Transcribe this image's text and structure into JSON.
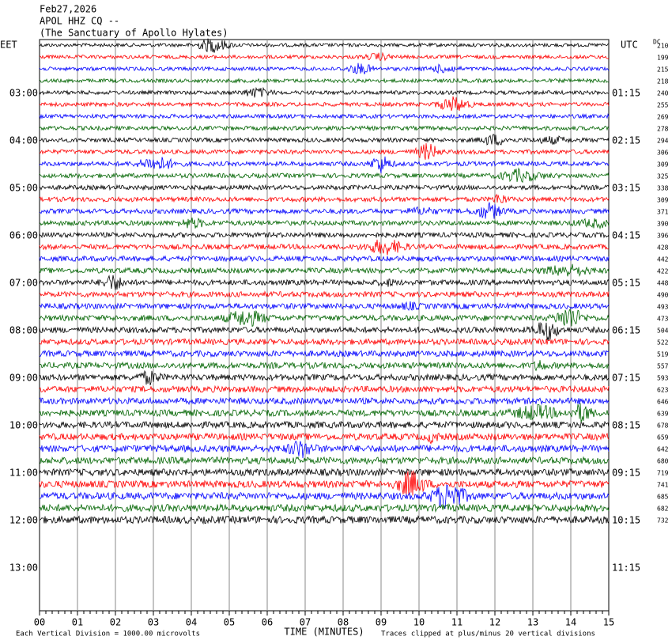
{
  "header": {
    "date": "Feb27,2026",
    "station": "APOL HHZ CQ --",
    "site": "(The Sanctuary of Apollo Hylates)"
  },
  "left_axis": {
    "title": "EET",
    "labels": [
      "03:00",
      "04:00",
      "05:00",
      "06:00",
      "07:00",
      "08:00",
      "09:00",
      "10:00",
      "11:00",
      "12:00",
      "13:00"
    ]
  },
  "right_axis": {
    "title": "UTC",
    "labels": [
      "01:15",
      "02:15",
      "03:15",
      "04:15",
      "05:15",
      "06:15",
      "07:15",
      "08:15",
      "09:15",
      "10:15",
      "11:15"
    ]
  },
  "dc": {
    "title": "DC",
    "values": [
      "210",
      "199",
      "215",
      "218",
      "240",
      "255",
      "269",
      "278",
      "294",
      "306",
      "309",
      "325",
      "338",
      "309",
      "371",
      "390",
      "396",
      "428",
      "442",
      "422",
      "448",
      "490",
      "493",
      "473",
      "504",
      "522",
      "519",
      "557",
      "593",
      "623",
      "646",
      "639",
      "678",
      "659",
      "642",
      "680",
      "719",
      "741",
      "685",
      "682",
      "732"
    ]
  },
  "x_axis": {
    "title": "TIME (MINUTES)",
    "labels": [
      "00",
      "01",
      "02",
      "03",
      "04",
      "05",
      "06",
      "07",
      "08",
      "09",
      "10",
      "11",
      "12",
      "13",
      "14",
      "15"
    ]
  },
  "footer": {
    "scale": "Each Vertical Division = 1000.00 microvolts",
    "clip": "Traces clipped at plus/minus 20 vertical divisions"
  }
}
